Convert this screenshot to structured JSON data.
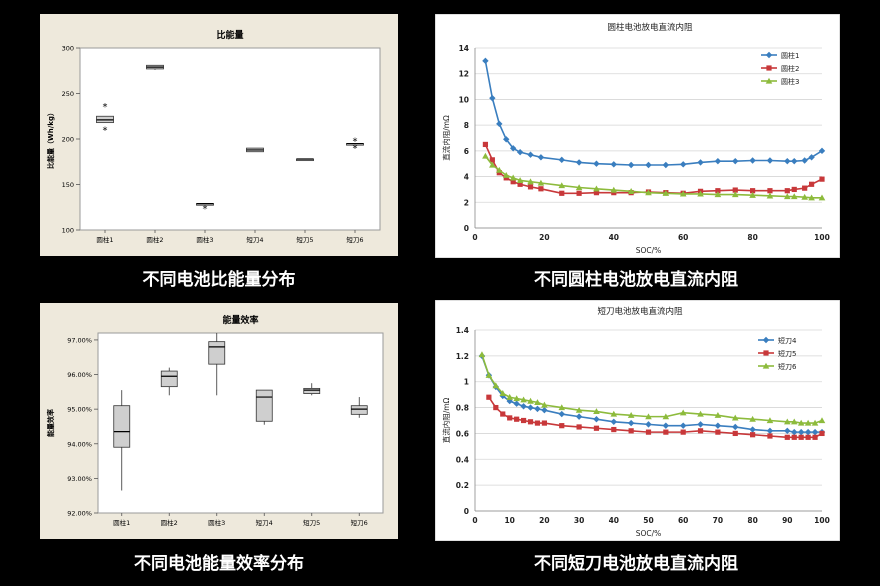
{
  "chart_data": [
    {
      "type": "box",
      "title": "比能量",
      "ylabel": "比能量（Wh/kg）",
      "ylim": [
        100,
        300
      ],
      "yticks": [
        100,
        150,
        200,
        250,
        300
      ],
      "ytick_labels": [
        "100",
        "150",
        "200",
        "250",
        "300"
      ],
      "categories": [
        "圆柱1",
        "圆柱2",
        "圆柱3",
        "短刀4",
        "短刀5",
        "短刀6"
      ],
      "boxes": [
        {
          "q1": 218,
          "median": 221,
          "q3": 225,
          "whisker_low": 218,
          "whisker_high": 225,
          "outliers": [
            211,
            237
          ]
        },
        {
          "q1": 277,
          "median": 279,
          "q3": 281,
          "whisker_low": 276,
          "whisker_high": 281,
          "outliers": []
        },
        {
          "q1": 129,
          "median": 129,
          "q3": 129,
          "whisker_low": 129,
          "whisker_high": 129,
          "outliers": [
            125
          ]
        },
        {
          "q1": 186,
          "median": 188,
          "q3": 190,
          "whisker_low": 186,
          "whisker_high": 190,
          "outliers": []
        },
        {
          "q1": 178,
          "median": 178,
          "q3": 178,
          "whisker_low": 178,
          "whisker_high": 178,
          "outliers": []
        },
        {
          "q1": 195,
          "median": 195,
          "q3": 195,
          "whisker_low": 195,
          "whisker_high": 195,
          "outliers": [
            191,
            199
          ]
        }
      ]
    },
    {
      "type": "line",
      "title": "圆柱电池放电直流内阻",
      "xlabel": "SOC/%",
      "ylabel": "直流内阻/mΩ",
      "xlim": [
        0,
        100
      ],
      "ylim": [
        0,
        14
      ],
      "xticks": [
        0,
        20,
        40,
        60,
        80,
        100
      ],
      "yticks": [
        0,
        2,
        4,
        6,
        8,
        10,
        12,
        14
      ],
      "legend": "top-right",
      "series": [
        {
          "name": "圆柱1",
          "color": "#3a7ebf",
          "marker": "diamond",
          "x": [
            3,
            5,
            7,
            9,
            11,
            13,
            16,
            19,
            25,
            30,
            35,
            40,
            45,
            50,
            55,
            60,
            65,
            70,
            75,
            80,
            85,
            90,
            92,
            95,
            97,
            100
          ],
          "y": [
            13.0,
            10.1,
            8.1,
            6.9,
            6.2,
            5.9,
            5.7,
            5.5,
            5.3,
            5.1,
            5.0,
            4.95,
            4.9,
            4.9,
            4.9,
            4.95,
            5.1,
            5.2,
            5.2,
            5.25,
            5.25,
            5.2,
            5.2,
            5.25,
            5.5,
            6.0
          ]
        },
        {
          "name": "圆柱2",
          "color": "#c8383a",
          "marker": "square",
          "x": [
            3,
            5,
            7,
            9,
            11,
            13,
            16,
            19,
            25,
            30,
            35,
            40,
            45,
            50,
            55,
            60,
            65,
            70,
            75,
            80,
            85,
            90,
            92,
            95,
            97,
            100
          ],
          "y": [
            6.5,
            5.3,
            4.3,
            3.9,
            3.6,
            3.4,
            3.2,
            3.05,
            2.7,
            2.7,
            2.75,
            2.75,
            2.75,
            2.8,
            2.75,
            2.7,
            2.85,
            2.9,
            2.95,
            2.9,
            2.9,
            2.9,
            3.0,
            3.1,
            3.4,
            3.8
          ]
        },
        {
          "name": "圆柱3",
          "color": "#8dbb3c",
          "marker": "triangle",
          "x": [
            3,
            5,
            7,
            9,
            11,
            13,
            16,
            19,
            25,
            30,
            35,
            40,
            45,
            50,
            55,
            60,
            65,
            70,
            75,
            80,
            85,
            90,
            92,
            95,
            97,
            100
          ],
          "y": [
            5.6,
            4.9,
            4.5,
            4.1,
            3.9,
            3.7,
            3.6,
            3.5,
            3.3,
            3.15,
            3.05,
            2.95,
            2.85,
            2.75,
            2.7,
            2.65,
            2.65,
            2.6,
            2.6,
            2.55,
            2.5,
            2.45,
            2.45,
            2.4,
            2.35,
            2.35
          ]
        }
      ]
    },
    {
      "type": "box",
      "title": "能量效率",
      "ylabel": "能量效率",
      "ylim": [
        92.0,
        97.2
      ],
      "yticks": [
        92,
        93,
        94,
        95,
        96,
        97
      ],
      "ytick_labels": [
        "92.00%",
        "93.00%",
        "94.00%",
        "95.00%",
        "96.00%",
        "97.00%"
      ],
      "categories": [
        "圆柱1",
        "圆柱2",
        "圆柱3",
        "短刀4",
        "短刀5",
        "短刀6"
      ],
      "boxes": [
        {
          "q1": 93.9,
          "median": 94.35,
          "q3": 95.1,
          "whisker_low": 92.65,
          "whisker_high": 95.55,
          "outliers": []
        },
        {
          "q1": 95.65,
          "median": 95.95,
          "q3": 96.1,
          "whisker_low": 95.4,
          "whisker_high": 96.2,
          "outliers": []
        },
        {
          "q1": 96.3,
          "median": 96.8,
          "q3": 96.95,
          "whisker_low": 95.4,
          "whisker_high": 97.2,
          "outliers": []
        },
        {
          "q1": 94.65,
          "median": 95.35,
          "q3": 95.55,
          "whisker_low": 94.55,
          "whisker_high": 95.55,
          "outliers": []
        },
        {
          "q1": 95.45,
          "median": 95.55,
          "q3": 95.6,
          "whisker_low": 95.4,
          "whisker_high": 95.75,
          "outliers": []
        },
        {
          "q1": 94.85,
          "median": 95.0,
          "q3": 95.1,
          "whisker_low": 94.75,
          "whisker_high": 95.35,
          "outliers": []
        }
      ]
    },
    {
      "type": "line",
      "title": "短刀电池放电直流内阻",
      "xlabel": "SOC/%",
      "ylabel": "直流内阻/mΩ",
      "xlim": [
        0,
        100
      ],
      "ylim": [
        0,
        1.4
      ],
      "xticks": [
        0,
        10,
        20,
        30,
        40,
        50,
        60,
        70,
        80,
        90,
        100
      ],
      "yticks": [
        0,
        0.2,
        0.4,
        0.6,
        0.8,
        1.0,
        1.2,
        1.4
      ],
      "ytick_labels": [
        "0",
        "0.2",
        "0.4",
        "0.6",
        "0.8",
        "1",
        "1.2",
        "1.4"
      ],
      "legend": "top-right",
      "series": [
        {
          "name": "短刀4",
          "color": "#3a7ebf",
          "marker": "diamond",
          "x": [
            2,
            4,
            6,
            8,
            10,
            12,
            14,
            16,
            18,
            20,
            25,
            30,
            35,
            40,
            45,
            50,
            55,
            60,
            65,
            70,
            75,
            80,
            85,
            90,
            92,
            94,
            96,
            98,
            100
          ],
          "y": [
            1.2,
            1.05,
            0.96,
            0.89,
            0.85,
            0.83,
            0.81,
            0.8,
            0.79,
            0.78,
            0.75,
            0.73,
            0.71,
            0.69,
            0.68,
            0.67,
            0.66,
            0.66,
            0.67,
            0.66,
            0.65,
            0.63,
            0.62,
            0.62,
            0.61,
            0.61,
            0.61,
            0.61,
            0.61
          ]
        },
        {
          "name": "短刀5",
          "color": "#c8383a",
          "marker": "square",
          "x": [
            4,
            6,
            8,
            10,
            12,
            14,
            16,
            18,
            20,
            25,
            30,
            35,
            40,
            45,
            50,
            55,
            60,
            65,
            70,
            75,
            80,
            85,
            90,
            92,
            94,
            96,
            98,
            100
          ],
          "y": [
            0.88,
            0.8,
            0.75,
            0.72,
            0.71,
            0.7,
            0.69,
            0.68,
            0.68,
            0.66,
            0.65,
            0.64,
            0.63,
            0.62,
            0.61,
            0.61,
            0.61,
            0.62,
            0.61,
            0.6,
            0.59,
            0.58,
            0.57,
            0.57,
            0.57,
            0.57,
            0.57,
            0.6
          ]
        },
        {
          "name": "短刀6",
          "color": "#8dbb3c",
          "marker": "triangle",
          "x": [
            2,
            4,
            6,
            8,
            10,
            12,
            14,
            16,
            18,
            20,
            25,
            30,
            35,
            40,
            45,
            50,
            55,
            60,
            65,
            70,
            75,
            80,
            85,
            90,
            92,
            94,
            96,
            98,
            100
          ],
          "y": [
            1.21,
            1.05,
            0.97,
            0.91,
            0.88,
            0.87,
            0.86,
            0.85,
            0.84,
            0.82,
            0.8,
            0.78,
            0.77,
            0.75,
            0.74,
            0.73,
            0.73,
            0.76,
            0.75,
            0.74,
            0.72,
            0.71,
            0.7,
            0.69,
            0.69,
            0.68,
            0.68,
            0.68,
            0.7
          ]
        }
      ]
    }
  ],
  "captions": [
    "不同电池比能量分布",
    "不同圆柱电池放电直流内阻",
    "不同电池能量效率分布",
    "不同短刀电池放电直流内阻"
  ]
}
